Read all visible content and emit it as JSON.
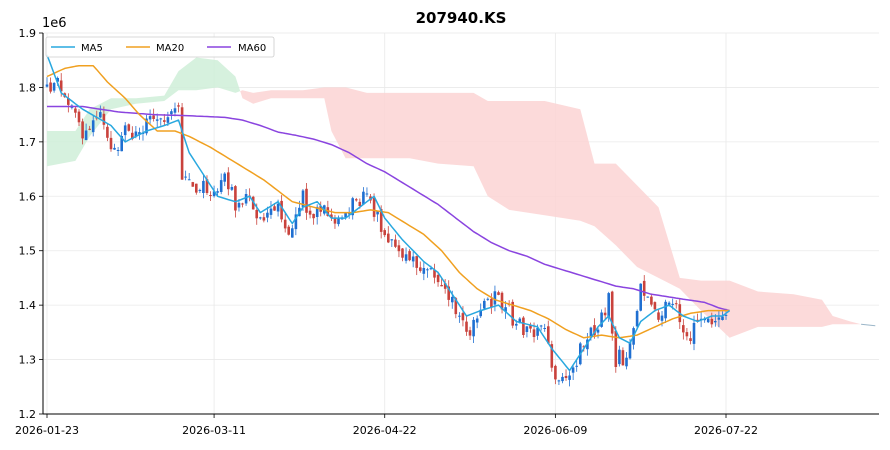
{
  "chart_data": {
    "type": "candlestick",
    "title": "207940.KS",
    "y_scale_label": "1e6",
    "ylim": [
      1.2,
      1.9
    ],
    "yticks": [
      "1.2",
      "1.3",
      "1.4",
      "1.5",
      "1.6",
      "1.7",
      "1.8",
      "1.9"
    ],
    "x_tick_labels": [
      "2026-01-23",
      "2026-03-11",
      "2026-04-22",
      "2026-06-09",
      "2026-07-22"
    ],
    "x_tick_index": [
      0,
      47,
      95,
      143,
      191
    ],
    "n_bars": 192,
    "x_extent": 233,
    "grid": true,
    "legend": {
      "position": "top-left",
      "entries": [
        "MA5",
        "MA20",
        "MA60"
      ]
    },
    "colors": {
      "MA5": "#29a8df",
      "MA20": "#f0a020",
      "MA60": "#8a44df",
      "up": "#1f6fd1",
      "down": "#c9423c",
      "cloud_bull": "#cfeed8",
      "cloud_bear": "#fbd3d3"
    },
    "anchors": [
      {
        "i": 0,
        "v": 1.8
      },
      {
        "i": 3,
        "v": 1.805
      },
      {
        "i": 7,
        "v": 1.77
      },
      {
        "i": 10,
        "v": 1.72
      },
      {
        "i": 15,
        "v": 1.75
      },
      {
        "i": 18,
        "v": 1.69
      },
      {
        "i": 22,
        "v": 1.71
      },
      {
        "i": 28,
        "v": 1.73
      },
      {
        "i": 33,
        "v": 1.745
      },
      {
        "i": 37,
        "v": 1.77
      },
      {
        "i": 38,
        "v": 1.63
      },
      {
        "i": 42,
        "v": 1.62
      },
      {
        "i": 46,
        "v": 1.6
      },
      {
        "i": 50,
        "v": 1.64
      },
      {
        "i": 53,
        "v": 1.58
      },
      {
        "i": 57,
        "v": 1.6
      },
      {
        "i": 60,
        "v": 1.55
      },
      {
        "i": 64,
        "v": 1.58
      },
      {
        "i": 68,
        "v": 1.53
      },
      {
        "i": 72,
        "v": 1.6
      },
      {
        "i": 75,
        "v": 1.57
      },
      {
        "i": 78,
        "v": 1.58
      },
      {
        "i": 82,
        "v": 1.55
      },
      {
        "i": 86,
        "v": 1.6
      },
      {
        "i": 90,
        "v": 1.6
      },
      {
        "i": 95,
        "v": 1.53
      },
      {
        "i": 100,
        "v": 1.49
      },
      {
        "i": 106,
        "v": 1.47
      },
      {
        "i": 110,
        "v": 1.45
      },
      {
        "i": 114,
        "v": 1.4
      },
      {
        "i": 118,
        "v": 1.35
      },
      {
        "i": 121,
        "v": 1.38
      },
      {
        "i": 126,
        "v": 1.42
      },
      {
        "i": 131,
        "v": 1.37
      },
      {
        "i": 136,
        "v": 1.35
      },
      {
        "i": 140,
        "v": 1.36
      },
      {
        "i": 143,
        "v": 1.26
      },
      {
        "i": 147,
        "v": 1.28
      },
      {
        "i": 152,
        "v": 1.34
      },
      {
        "i": 156,
        "v": 1.37
      },
      {
        "i": 158,
        "v": 1.41
      },
      {
        "i": 160,
        "v": 1.3
      },
      {
        "i": 163,
        "v": 1.29
      },
      {
        "i": 167,
        "v": 1.43
      },
      {
        "i": 172,
        "v": 1.38
      },
      {
        "i": 176,
        "v": 1.41
      },
      {
        "i": 180,
        "v": 1.34
      },
      {
        "i": 184,
        "v": 1.38
      },
      {
        "i": 188,
        "v": 1.37
      },
      {
        "i": 191,
        "v": 1.39
      }
    ],
    "ma5": [
      {
        "i": 0,
        "v": 1.86
      },
      {
        "i": 4,
        "v": 1.79
      },
      {
        "i": 10,
        "v": 1.76
      },
      {
        "i": 18,
        "v": 1.73
      },
      {
        "i": 22,
        "v": 1.7
      },
      {
        "i": 28,
        "v": 1.72
      },
      {
        "i": 33,
        "v": 1.73
      },
      {
        "i": 37,
        "v": 1.74
      },
      {
        "i": 40,
        "v": 1.68
      },
      {
        "i": 44,
        "v": 1.64
      },
      {
        "i": 48,
        "v": 1.6
      },
      {
        "i": 53,
        "v": 1.59
      },
      {
        "i": 57,
        "v": 1.6
      },
      {
        "i": 60,
        "v": 1.57
      },
      {
        "i": 65,
        "v": 1.59
      },
      {
        "i": 69,
        "v": 1.55
      },
      {
        "i": 72,
        "v": 1.58
      },
      {
        "i": 76,
        "v": 1.59
      },
      {
        "i": 80,
        "v": 1.56
      },
      {
        "i": 84,
        "v": 1.56
      },
      {
        "i": 88,
        "v": 1.58
      },
      {
        "i": 92,
        "v": 1.6
      },
      {
        "i": 95,
        "v": 1.56
      },
      {
        "i": 100,
        "v": 1.52
      },
      {
        "i": 106,
        "v": 1.48
      },
      {
        "i": 110,
        "v": 1.46
      },
      {
        "i": 114,
        "v": 1.42
      },
      {
        "i": 118,
        "v": 1.38
      },
      {
        "i": 122,
        "v": 1.39
      },
      {
        "i": 127,
        "v": 1.4
      },
      {
        "i": 132,
        "v": 1.37
      },
      {
        "i": 138,
        "v": 1.36
      },
      {
        "i": 142,
        "v": 1.32
      },
      {
        "i": 147,
        "v": 1.28
      },
      {
        "i": 150,
        "v": 1.31
      },
      {
        "i": 155,
        "v": 1.36
      },
      {
        "i": 158,
        "v": 1.38
      },
      {
        "i": 161,
        "v": 1.34
      },
      {
        "i": 164,
        "v": 1.33
      },
      {
        "i": 167,
        "v": 1.37
      },
      {
        "i": 171,
        "v": 1.39
      },
      {
        "i": 175,
        "v": 1.4
      },
      {
        "i": 179,
        "v": 1.38
      },
      {
        "i": 183,
        "v": 1.37
      },
      {
        "i": 187,
        "v": 1.38
      },
      {
        "i": 190,
        "v": 1.38
      },
      {
        "i": 192,
        "v": 1.39
      }
    ],
    "ma20": [
      {
        "i": 0,
        "v": 1.82
      },
      {
        "i": 5,
        "v": 1.835
      },
      {
        "i": 9,
        "v": 1.84
      },
      {
        "i": 13,
        "v": 1.84
      },
      {
        "i": 17,
        "v": 1.81
      },
      {
        "i": 22,
        "v": 1.78
      },
      {
        "i": 26,
        "v": 1.75
      },
      {
        "i": 31,
        "v": 1.72
      },
      {
        "i": 36,
        "v": 1.72
      },
      {
        "i": 40,
        "v": 1.71
      },
      {
        "i": 46,
        "v": 1.69
      },
      {
        "i": 51,
        "v": 1.67
      },
      {
        "i": 56,
        "v": 1.65
      },
      {
        "i": 61,
        "v": 1.63
      },
      {
        "i": 65,
        "v": 1.61
      },
      {
        "i": 69,
        "v": 1.59
      },
      {
        "i": 75,
        "v": 1.58
      },
      {
        "i": 81,
        "v": 1.57
      },
      {
        "i": 86,
        "v": 1.57
      },
      {
        "i": 91,
        "v": 1.575
      },
      {
        "i": 96,
        "v": 1.57
      },
      {
        "i": 101,
        "v": 1.55
      },
      {
        "i": 106,
        "v": 1.53
      },
      {
        "i": 111,
        "v": 1.5
      },
      {
        "i": 116,
        "v": 1.46
      },
      {
        "i": 121,
        "v": 1.43
      },
      {
        "i": 126,
        "v": 1.41
      },
      {
        "i": 131,
        "v": 1.4
      },
      {
        "i": 136,
        "v": 1.39
      },
      {
        "i": 141,
        "v": 1.375
      },
      {
        "i": 146,
        "v": 1.355
      },
      {
        "i": 151,
        "v": 1.34
      },
      {
        "i": 156,
        "v": 1.345
      },
      {
        "i": 161,
        "v": 1.34
      },
      {
        "i": 166,
        "v": 1.345
      },
      {
        "i": 171,
        "v": 1.36
      },
      {
        "i": 176,
        "v": 1.375
      },
      {
        "i": 181,
        "v": 1.385
      },
      {
        "i": 186,
        "v": 1.39
      },
      {
        "i": 192,
        "v": 1.39
      }
    ],
    "ma60": [
      {
        "i": 0,
        "v": 1.765
      },
      {
        "i": 10,
        "v": 1.765
      },
      {
        "i": 20,
        "v": 1.755
      },
      {
        "i": 30,
        "v": 1.75
      },
      {
        "i": 40,
        "v": 1.748
      },
      {
        "i": 50,
        "v": 1.745
      },
      {
        "i": 55,
        "v": 1.74
      },
      {
        "i": 60,
        "v": 1.73
      },
      {
        "i": 65,
        "v": 1.718
      },
      {
        "i": 70,
        "v": 1.712
      },
      {
        "i": 75,
        "v": 1.705
      },
      {
        "i": 80,
        "v": 1.695
      },
      {
        "i": 85,
        "v": 1.68
      },
      {
        "i": 90,
        "v": 1.66
      },
      {
        "i": 95,
        "v": 1.645
      },
      {
        "i": 100,
        "v": 1.625
      },
      {
        "i": 105,
        "v": 1.605
      },
      {
        "i": 110,
        "v": 1.585
      },
      {
        "i": 115,
        "v": 1.56
      },
      {
        "i": 120,
        "v": 1.535
      },
      {
        "i": 125,
        "v": 1.515
      },
      {
        "i": 130,
        "v": 1.5
      },
      {
        "i": 135,
        "v": 1.49
      },
      {
        "i": 140,
        "v": 1.475
      },
      {
        "i": 145,
        "v": 1.465
      },
      {
        "i": 150,
        "v": 1.455
      },
      {
        "i": 155,
        "v": 1.445
      },
      {
        "i": 160,
        "v": 1.435
      },
      {
        "i": 165,
        "v": 1.43
      },
      {
        "i": 170,
        "v": 1.42
      },
      {
        "i": 175,
        "v": 1.415
      },
      {
        "i": 180,
        "v": 1.41
      },
      {
        "i": 185,
        "v": 1.405
      },
      {
        "i": 189,
        "v": 1.395
      },
      {
        "i": 192,
        "v": 1.39
      }
    ],
    "cloud": [
      {
        "i": 0,
        "a": 1.72,
        "b": 1.655
      },
      {
        "i": 8,
        "a": 1.72,
        "b": 1.665
      },
      {
        "i": 12,
        "a": 1.76,
        "b": 1.71
      },
      {
        "i": 18,
        "a": 1.78,
        "b": 1.76
      },
      {
        "i": 25,
        "a": 1.78,
        "b": 1.77
      },
      {
        "i": 33,
        "a": 1.785,
        "b": 1.775
      },
      {
        "i": 37,
        "a": 1.83,
        "b": 1.795
      },
      {
        "i": 42,
        "a": 1.855,
        "b": 1.795
      },
      {
        "i": 48,
        "a": 1.85,
        "b": 1.8
      },
      {
        "i": 53,
        "a": 1.82,
        "b": 1.79
      },
      {
        "i": 55,
        "a": 1.78,
        "b": 1.795
      },
      {
        "i": 58,
        "a": 1.77,
        "b": 1.79
      },
      {
        "i": 63,
        "a": 1.78,
        "b": 1.795
      },
      {
        "i": 72,
        "a": 1.78,
        "b": 1.795
      },
      {
        "i": 78,
        "a": 1.78,
        "b": 1.8
      },
      {
        "i": 80,
        "a": 1.72,
        "b": 1.8
      },
      {
        "i": 84,
        "a": 1.67,
        "b": 1.8
      },
      {
        "i": 90,
        "a": 1.67,
        "b": 1.79
      },
      {
        "i": 102,
        "a": 1.67,
        "b": 1.79
      },
      {
        "i": 110,
        "a": 1.66,
        "b": 1.79
      },
      {
        "i": 120,
        "a": 1.655,
        "b": 1.79
      },
      {
        "i": 124,
        "a": 1.6,
        "b": 1.775
      },
      {
        "i": 130,
        "a": 1.575,
        "b": 1.775
      },
      {
        "i": 140,
        "a": 1.565,
        "b": 1.775
      },
      {
        "i": 150,
        "a": 1.555,
        "b": 1.76
      },
      {
        "i": 154,
        "a": 1.545,
        "b": 1.66
      },
      {
        "i": 160,
        "a": 1.51,
        "b": 1.66
      },
      {
        "i": 166,
        "a": 1.47,
        "b": 1.62
      },
      {
        "i": 172,
        "a": 1.45,
        "b": 1.58
      },
      {
        "i": 178,
        "a": 1.43,
        "b": 1.45
      },
      {
        "i": 184,
        "a": 1.39,
        "b": 1.445
      },
      {
        "i": 192,
        "a": 1.34,
        "b": 1.445
      },
      {
        "i": 200,
        "a": 1.36,
        "b": 1.425
      },
      {
        "i": 210,
        "a": 1.36,
        "b": 1.42
      },
      {
        "i": 218,
        "a": 1.36,
        "b": 1.41
      },
      {
        "i": 221,
        "a": 1.365,
        "b": 1.38
      },
      {
        "i": 226,
        "a": 1.365,
        "b": 1.37
      },
      {
        "i": 229,
        "a": 1.365,
        "b": 1.365
      }
    ],
    "cloud_tail": [
      {
        "i": 229,
        "v": 1.365
      },
      {
        "i": 233,
        "v": 1.362
      }
    ]
  }
}
